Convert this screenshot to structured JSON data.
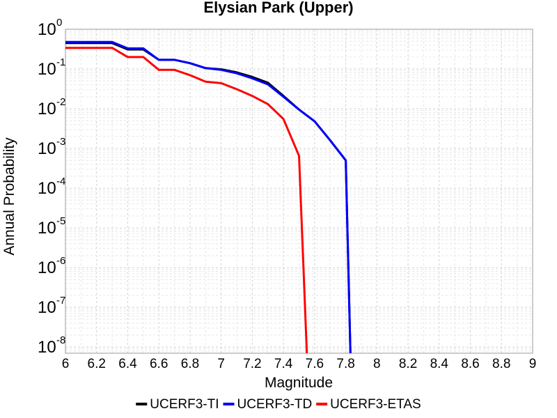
{
  "chart_data": {
    "type": "line",
    "title": "Elysian Park (Upper)",
    "xlabel": "Magnitude",
    "ylabel": "Annual Probability",
    "xlim": [
      6,
      9
    ],
    "ylim": [
      7e-09,
      1
    ],
    "yscale": "log",
    "grid": true,
    "legend_position": "bottom",
    "x_ticks": [
      "6",
      "6.2",
      "6.4",
      "6.6",
      "6.8",
      "7",
      "7.2",
      "7.4",
      "7.6",
      "7.8",
      "8",
      "8.2",
      "8.4",
      "8.6",
      "8.8",
      "9"
    ],
    "y_ticks": [
      {
        "base": "10",
        "exp": "0"
      },
      {
        "base": "10",
        "exp": "-1"
      },
      {
        "base": "10",
        "exp": "-2"
      },
      {
        "base": "10",
        "exp": "-3"
      },
      {
        "base": "10",
        "exp": "-4"
      },
      {
        "base": "10",
        "exp": "-5"
      },
      {
        "base": "10",
        "exp": "-6"
      },
      {
        "base": "10",
        "exp": "-7"
      },
      {
        "base": "10",
        "exp": "-8"
      }
    ],
    "series": [
      {
        "name": "UCERF3-TI",
        "color": "#000000",
        "x": [
          6.0,
          6.3,
          6.4,
          6.5,
          6.6,
          6.7,
          6.8,
          6.9,
          7.0,
          7.1,
          7.2,
          7.3,
          7.4,
          7.5,
          7.6,
          7.7,
          7.8,
          7.83
        ],
        "y": [
          0.45,
          0.45,
          0.31,
          0.31,
          0.17,
          0.17,
          0.14,
          0.105,
          0.098,
          0.082,
          0.063,
          0.045,
          0.021,
          0.0095,
          0.0048,
          0.0016,
          0.0005,
          7e-09
        ]
      },
      {
        "name": "UCERF3-TD",
        "color": "#0000ff",
        "x": [
          6.0,
          6.3,
          6.4,
          6.5,
          6.6,
          6.7,
          6.8,
          6.9,
          7.0,
          7.1,
          7.2,
          7.3,
          7.4,
          7.5,
          7.6,
          7.7,
          7.8,
          7.83
        ],
        "y": [
          0.48,
          0.48,
          0.33,
          0.33,
          0.17,
          0.17,
          0.14,
          0.105,
          0.095,
          0.078,
          0.058,
          0.041,
          0.02,
          0.0095,
          0.0048,
          0.0016,
          0.0005,
          7e-09
        ]
      },
      {
        "name": "UCERF3-ETAS",
        "color": "#ff0000",
        "x": [
          6.0,
          6.3,
          6.4,
          6.5,
          6.6,
          6.7,
          6.8,
          6.9,
          7.0,
          7.1,
          7.2,
          7.3,
          7.4,
          7.5,
          7.55
        ],
        "y": [
          0.34,
          0.34,
          0.2,
          0.2,
          0.095,
          0.095,
          0.07,
          0.048,
          0.044,
          0.031,
          0.021,
          0.013,
          0.0055,
          0.00065,
          7e-09
        ]
      }
    ]
  }
}
